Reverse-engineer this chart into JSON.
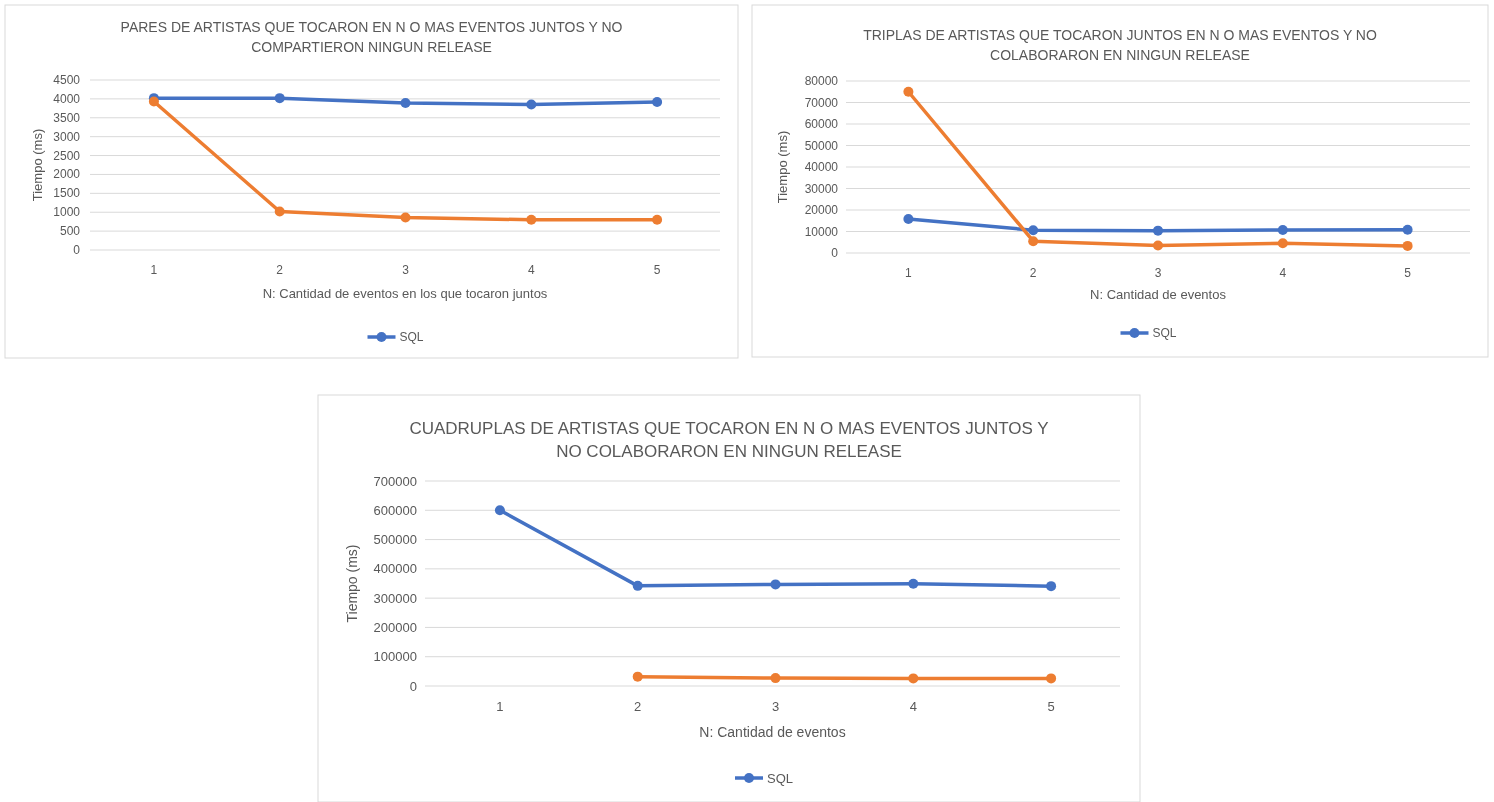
{
  "chart_data": [
    {
      "type": "line",
      "title": "PARES DE ARTISTAS QUE TOCARON EN N O MAS EVENTOS JUNTOS Y NO COMPARTIERON NINGUN RELEASE",
      "xlabel": "N: Cantidad de eventos  en  los que tocaron juntos",
      "ylabel": "Tiempo (ms)",
      "categories": [
        "1",
        "2",
        "3",
        "4",
        "5"
      ],
      "ylim": [
        0,
        4500
      ],
      "yticks": [
        0,
        500,
        1000,
        1500,
        2000,
        2500,
        3000,
        3500,
        4000,
        4500
      ],
      "grid": "y",
      "legend": "bottom",
      "marker": "circle",
      "series": [
        {
          "name": "SQL",
          "color": "#4472c4",
          "values": [
            4020,
            4020,
            3890,
            3850,
            3920
          ]
        },
        {
          "color": "#ed7d31",
          "values": [
            3930,
            1020,
            860,
            800,
            800
          ]
        }
      ]
    },
    {
      "type": "line",
      "title": "TRIPLAS DE ARTISTAS QUE TOCARON JUNTOS EN N O MAS EVENTOS Y NO COLABORARON EN NINGUN RELEASE",
      "xlabel": "N: Cantidad de eventos",
      "ylabel": "Tiempo (ms)",
      "categories": [
        "1",
        "2",
        "3",
        "4",
        "5"
      ],
      "ylim": [
        0,
        80000
      ],
      "yticks": [
        0,
        10000,
        20000,
        30000,
        40000,
        50000,
        60000,
        70000,
        80000
      ],
      "grid": "y",
      "legend": "bottom",
      "marker": "circle",
      "series": [
        {
          "name": "SQL",
          "color": "#4472c4",
          "values": [
            15800,
            10600,
            10400,
            10700,
            10800
          ]
        },
        {
          "color": "#ed7d31",
          "values": [
            75000,
            5500,
            3500,
            4500,
            3300
          ]
        }
      ]
    },
    {
      "type": "line",
      "title": "CUADRUPLAS DE ARTISTAS QUE TOCARON EN N O MAS EVENTOS JUNTOS Y NO COLABORARON EN NINGUN RELEASE",
      "xlabel": "N: Cantidad de eventos",
      "ylabel": "Tiempo (ms)",
      "categories": [
        "1",
        "2",
        "3",
        "4",
        "5"
      ],
      "ylim": [
        0,
        700000
      ],
      "yticks": [
        0,
        100000,
        200000,
        300000,
        400000,
        500000,
        600000,
        700000
      ],
      "grid": "y",
      "legend": "bottom",
      "marker": "circle",
      "series": [
        {
          "name": "SQL",
          "color": "#4472c4",
          "values": [
            600000,
            342000,
            347000,
            349000,
            341000
          ]
        },
        {
          "color": "#ed7d31",
          "values": [
            null,
            32000,
            27000,
            26000,
            26000
          ]
        }
      ]
    }
  ]
}
